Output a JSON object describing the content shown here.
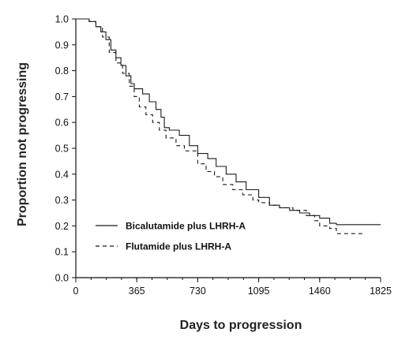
{
  "chart_data": {
    "type": "line",
    "title": "",
    "xlabel": "Days to progression",
    "ylabel": "Proportion not progressing",
    "xlim": [
      0,
      1825
    ],
    "ylim": [
      0.0,
      1.0
    ],
    "x_ticks": [
      "0",
      "365",
      "730",
      "1095",
      "1460",
      "1825"
    ],
    "y_ticks": [
      "0.0",
      "0.1",
      "0.2",
      "0.3",
      "0.4",
      "0.5",
      "0.6",
      "0.7",
      "0.8",
      "0.9",
      "1.0"
    ],
    "legend_position": "bottom-left",
    "grid": false,
    "series": [
      {
        "name": "Bicalutamide plus LHRH-A",
        "style": "solid",
        "color": "#1a1a1a",
        "points": [
          [
            0,
            1.0
          ],
          [
            40,
            1.0
          ],
          [
            80,
            0.99
          ],
          [
            120,
            0.97
          ],
          [
            150,
            0.95
          ],
          [
            180,
            0.92
          ],
          [
            210,
            0.88
          ],
          [
            240,
            0.85
          ],
          [
            270,
            0.82
          ],
          [
            300,
            0.78
          ],
          [
            330,
            0.75
          ],
          [
            350,
            0.73
          ],
          [
            400,
            0.71
          ],
          [
            440,
            0.68
          ],
          [
            480,
            0.65
          ],
          [
            510,
            0.62
          ],
          [
            530,
            0.58
          ],
          [
            560,
            0.57
          ],
          [
            620,
            0.55
          ],
          [
            680,
            0.51
          ],
          [
            730,
            0.48
          ],
          [
            790,
            0.46
          ],
          [
            840,
            0.43
          ],
          [
            900,
            0.4
          ],
          [
            960,
            0.37
          ],
          [
            1020,
            0.34
          ],
          [
            1095,
            0.31
          ],
          [
            1160,
            0.28
          ],
          [
            1220,
            0.27
          ],
          [
            1280,
            0.26
          ],
          [
            1340,
            0.25
          ],
          [
            1400,
            0.24
          ],
          [
            1460,
            0.23
          ],
          [
            1520,
            0.21
          ],
          [
            1560,
            0.205
          ],
          [
            1600,
            0.205
          ],
          [
            1825,
            0.205
          ]
        ]
      },
      {
        "name": "Flutamide plus LHRH-A",
        "style": "dashed",
        "color": "#1a1a1a",
        "points": [
          [
            0,
            1.0
          ],
          [
            40,
            1.0
          ],
          [
            80,
            0.99
          ],
          [
            120,
            0.97
          ],
          [
            160,
            0.93
          ],
          [
            200,
            0.87
          ],
          [
            240,
            0.83
          ],
          [
            280,
            0.79
          ],
          [
            320,
            0.74
          ],
          [
            350,
            0.7
          ],
          [
            380,
            0.66
          ],
          [
            420,
            0.63
          ],
          [
            460,
            0.6
          ],
          [
            500,
            0.57
          ],
          [
            540,
            0.54
          ],
          [
            600,
            0.51
          ],
          [
            650,
            0.49
          ],
          [
            730,
            0.44
          ],
          [
            780,
            0.41
          ],
          [
            830,
            0.39
          ],
          [
            880,
            0.36
          ],
          [
            940,
            0.34
          ],
          [
            1000,
            0.32
          ],
          [
            1060,
            0.3
          ],
          [
            1095,
            0.29
          ],
          [
            1160,
            0.28
          ],
          [
            1220,
            0.27
          ],
          [
            1300,
            0.26
          ],
          [
            1380,
            0.24
          ],
          [
            1430,
            0.22
          ],
          [
            1460,
            0.2
          ],
          [
            1520,
            0.19
          ],
          [
            1560,
            0.17
          ],
          [
            1600,
            0.17
          ],
          [
            1720,
            0.17
          ]
        ]
      }
    ]
  }
}
